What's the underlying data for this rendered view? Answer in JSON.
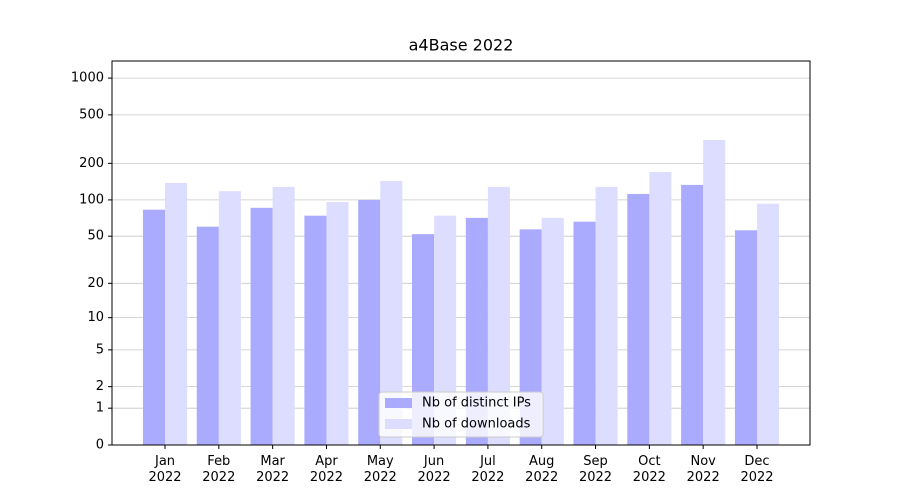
{
  "chart_data": {
    "type": "bar",
    "title": "a4Base 2022",
    "categories": [
      "Jan\n2022",
      "Feb\n2022",
      "Mar\n2022",
      "Apr\n2022",
      "May\n2022",
      "Jun\n2022",
      "Jul\n2022",
      "Aug\n2022",
      "Sep\n2022",
      "Oct\n2022",
      "Nov\n2022",
      "Dec\n2022"
    ],
    "series": [
      {
        "name": "Nb of distinct IPs",
        "color": "#aaaaff",
        "values": [
          83,
          60,
          86,
          74,
          100,
          52,
          71,
          57,
          66,
          112,
          133,
          56
        ]
      },
      {
        "name": "Nb of downloads",
        "color": "#ddddff",
        "values": [
          138,
          118,
          128,
          96,
          143,
          74,
          128,
          71,
          128,
          170,
          311,
          93
        ]
      }
    ],
    "yscale": "log1p",
    "ylim": [
      0,
      1380
    ],
    "yticks": [
      0,
      1,
      2,
      5,
      10,
      20,
      50,
      100,
      200,
      500,
      1000
    ],
    "grid": true,
    "legend": "lower center"
  }
}
